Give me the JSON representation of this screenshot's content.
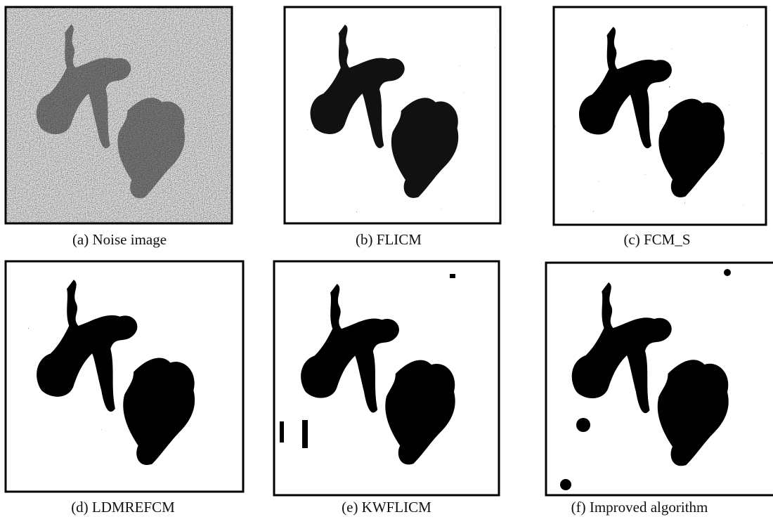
{
  "panels": [
    {
      "caption": "(a) Noise image"
    },
    {
      "caption": "(b) FLICM"
    },
    {
      "caption": "(c) FCM_S"
    },
    {
      "caption": "(d) LDMREFCM"
    },
    {
      "caption": "(e) KWFLICM"
    },
    {
      "caption": "(f) Improved algorithm"
    }
  ]
}
